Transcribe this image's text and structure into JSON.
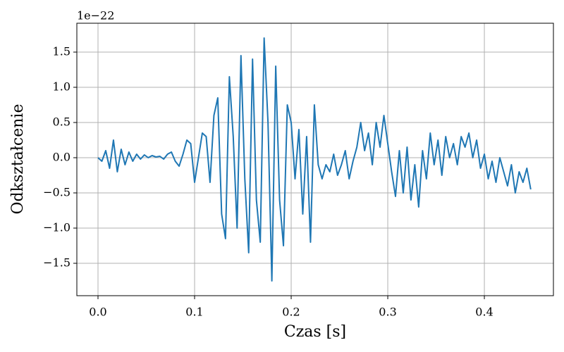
{
  "chart_data": {
    "type": "line",
    "xlabel": "Czas [s]",
    "ylabel": "Odkształcenie",
    "y_offset_text": "1e−22",
    "x": [
      0.0,
      0.004,
      0.008,
      0.012,
      0.016,
      0.02,
      0.024,
      0.028,
      0.032,
      0.036,
      0.04,
      0.044,
      0.048,
      0.052,
      0.056,
      0.06,
      0.064,
      0.068,
      0.072,
      0.076,
      0.08,
      0.084,
      0.088,
      0.092,
      0.096,
      0.1,
      0.104,
      0.108,
      0.112,
      0.116,
      0.12,
      0.124,
      0.128,
      0.132,
      0.136,
      0.14,
      0.144,
      0.148,
      0.152,
      0.156,
      0.16,
      0.164,
      0.168,
      0.172,
      0.176,
      0.18,
      0.184,
      0.188,
      0.192,
      0.196,
      0.2,
      0.204,
      0.208,
      0.212,
      0.216,
      0.22,
      0.224,
      0.228,
      0.232,
      0.236,
      0.24,
      0.244,
      0.248,
      0.252,
      0.256,
      0.26,
      0.264,
      0.268,
      0.272,
      0.276,
      0.28,
      0.284,
      0.288,
      0.292,
      0.296,
      0.3,
      0.304,
      0.308,
      0.312,
      0.316,
      0.32,
      0.324,
      0.328,
      0.332,
      0.336,
      0.34,
      0.344,
      0.348,
      0.352,
      0.356,
      0.36,
      0.364,
      0.368,
      0.372,
      0.376,
      0.38,
      0.384,
      0.388,
      0.392,
      0.396,
      0.4,
      0.404,
      0.408,
      0.412,
      0.416,
      0.42,
      0.424,
      0.428,
      0.432,
      0.436,
      0.44,
      0.444,
      0.448
    ],
    "series": [
      {
        "color": "#1f77b4",
        "values": [
          0.0,
          -0.05,
          0.1,
          -0.15,
          0.25,
          -0.2,
          0.12,
          -0.1,
          0.08,
          -0.05,
          0.05,
          -0.02,
          0.04,
          0.0,
          0.03,
          0.01,
          0.02,
          -0.02,
          0.05,
          0.08,
          -0.05,
          -0.12,
          0.05,
          0.25,
          0.2,
          -0.35,
          0.0,
          0.35,
          0.3,
          -0.35,
          0.6,
          0.85,
          -0.8,
          -1.15,
          1.15,
          0.3,
          -1.0,
          1.45,
          -0.3,
          -1.35,
          1.4,
          -0.6,
          -1.2,
          1.7,
          0.5,
          -1.75,
          1.3,
          -0.6,
          -1.25,
          0.75,
          0.5,
          -0.3,
          0.4,
          -0.8,
          0.3,
          -1.2,
          0.75,
          -0.1,
          -0.3,
          -0.1,
          -0.2,
          0.05,
          -0.25,
          -0.1,
          0.1,
          -0.3,
          -0.05,
          0.15,
          0.5,
          0.1,
          0.35,
          -0.1,
          0.5,
          0.15,
          0.6,
          0.2,
          -0.2,
          -0.55,
          0.1,
          -0.5,
          0.15,
          -0.6,
          -0.1,
          -0.7,
          0.1,
          -0.3,
          0.35,
          -0.1,
          0.25,
          -0.25,
          0.3,
          0.0,
          0.2,
          -0.1,
          0.3,
          0.15,
          0.35,
          0.0,
          0.25,
          -0.15,
          0.05,
          -0.3,
          -0.05,
          -0.35,
          0.0,
          -0.2,
          -0.4,
          -0.1,
          -0.5,
          -0.2,
          -0.35,
          -0.15,
          -0.45
        ]
      }
    ],
    "xlim": [
      -0.0219,
      0.4715
    ],
    "xticks": [
      {
        "value": 0.0,
        "label": "0.0"
      },
      0.1,
      0.2,
      0.3,
      0.4
    ],
    "ylim": [
      -1.96,
      1.91
    ],
    "yticks": [
      {
        "value": -1.5,
        "label": "−1.5"
      },
      {
        "value": -1.0,
        "label": "−1.0"
      },
      {
        "value": -0.5,
        "label": "−0.5"
      },
      {
        "value": 0.0,
        "label": "0.0"
      },
      0.5,
      {
        "value": 1.0,
        "label": "1.0"
      },
      1.5
    ],
    "grid": true
  }
}
